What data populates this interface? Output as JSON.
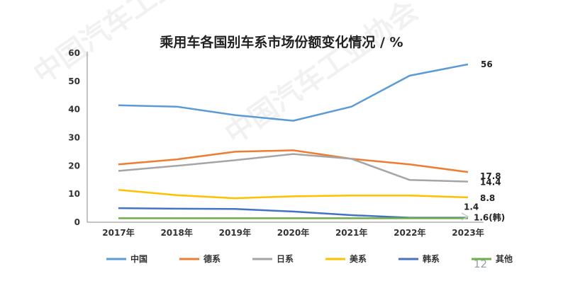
{
  "page_number": "12",
  "watermark": "中国汽车工业协会",
  "chart_data": {
    "type": "line",
    "title": "乘用车各国别车系市场份额变化情况 / %",
    "categories": [
      "2017年",
      "2018年",
      "2019年",
      "2020年",
      "2021年",
      "2022年",
      "2023年"
    ],
    "ylim": [
      0,
      60
    ],
    "yticks": [
      "0",
      "10",
      "20",
      "30",
      "40",
      "50",
      "60"
    ],
    "grid": false,
    "legend_position": "bottom",
    "series": [
      {
        "name": "中国",
        "color": "#5b9bd5",
        "values": [
          41.5,
          41,
          38,
          36,
          41,
          52,
          56
        ]
      },
      {
        "name": "德系",
        "color": "#ed7d31",
        "values": [
          20.5,
          22.3,
          25,
          25.5,
          22.5,
          20.5,
          17.8
        ]
      },
      {
        "name": "日系",
        "color": "#a5a5a5",
        "values": [
          18.2,
          20,
          22,
          24.2,
          22.5,
          15,
          14.4
        ]
      },
      {
        "name": "美系",
        "color": "#ffc000",
        "values": [
          11.5,
          9.6,
          8.5,
          9.2,
          9.5,
          9.5,
          8.8
        ]
      },
      {
        "name": "韩系",
        "color": "#4472c4",
        "values": [
          5,
          4.8,
          4.7,
          3.8,
          2.5,
          1.6,
          1.6
        ]
      },
      {
        "name": "其他",
        "color": "#70ad47",
        "values": [
          1.4,
          1.4,
          1.4,
          1.4,
          1.4,
          1.4,
          1.4
        ]
      }
    ],
    "end_labels": [
      {
        "series": "中国",
        "text": "56"
      },
      {
        "series": "德系",
        "text": "17.8"
      },
      {
        "series": "日系",
        "text": "14.4"
      },
      {
        "series": "美系",
        "text": "8.8"
      },
      {
        "series": "其他",
        "text": "1.4"
      },
      {
        "series": "韩系",
        "text": "1.6(韩)"
      }
    ]
  }
}
